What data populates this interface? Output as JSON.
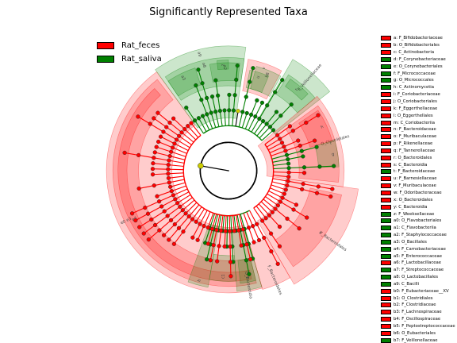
{
  "title": "Significantly Represented Taxa",
  "colors": {
    "Rat_feces": "#ff0000",
    "Rat_saliva": "#008000",
    "nonsig": "#cccc00"
  },
  "legend": [
    {
      "label": "Rat_feces",
      "color": "#ff0000"
    },
    {
      "label": "Rat_saliva",
      "color": "#008000"
    }
  ],
  "clades": [
    {
      "id": "e0",
      "group": "Rat_feces",
      "inner": 0.44,
      "outer": 0.95,
      "a0": 126,
      "a1": 286,
      "label": "e0"
    },
    {
      "id": "e3",
      "group": "Rat_feces",
      "inner": 0.7,
      "outer": 0.9,
      "a0": 128,
      "a1": 284,
      "label": "e3"
    },
    {
      "id": "e4",
      "group": "Rat_feces",
      "inner": 0.79,
      "outer": 0.86,
      "a0": 132,
      "a1": 282,
      "label": "e4"
    },
    {
      "id": "a9",
      "group": "Rat_saliva",
      "inner": 0.41,
      "outer": 0.97,
      "a0": 82,
      "a1": 126,
      "label": "a9"
    },
    {
      "id": "a8",
      "group": "Rat_saliva",
      "inner": 0.66,
      "outer": 0.88,
      "a0": 82,
      "a1": 124,
      "label": "a8"
    },
    {
      "id": "a3",
      "group": "Rat_saliva",
      "inner": 0.7,
      "outer": 0.84,
      "a0": 108,
      "a1": 124,
      "label": "a3"
    },
    {
      "id": "a2",
      "group": "Rat_saliva",
      "inner": 0.7,
      "outer": 0.84,
      "a0": 84,
      "a1": 100,
      "label": "a2"
    },
    {
      "id": "z",
      "group": "Rat_saliva",
      "inner": 0.79,
      "outer": 0.86,
      "a0": 90,
      "a1": 96,
      "label": "z"
    },
    {
      "id": "v",
      "group": "Rat_feces",
      "inner": 0.63,
      "outer": 0.88,
      "a0": 62,
      "a1": 80,
      "label": "v"
    },
    {
      "id": "b6",
      "group": "Rat_saliva",
      "inner": 0.66,
      "outer": 0.84,
      "a0": 61,
      "a1": 75,
      "label": "b6"
    },
    {
      "id": "u",
      "group": "Rat_saliva",
      "inner": 0.66,
      "outer": 0.8,
      "a0": 67,
      "a1": 78,
      "label": "u"
    },
    {
      "id": "F_Veillonellaceae",
      "group": "Rat_saliva",
      "inner": 0.46,
      "outer": 1.0,
      "a0": 38,
      "a1": 60,
      "label": "F_Veillonellaceae"
    },
    {
      "id": "j",
      "group": "Rat_saliva",
      "inner": 0.7,
      "outer": 0.88,
      "a0": 40,
      "a1": 58,
      "label": "j"
    },
    {
      "id": "t",
      "group": "Rat_saliva",
      "inner": 0.79,
      "outer": 0.86,
      "a0": 44,
      "a1": 56,
      "label": "t"
    },
    {
      "id": "O_Clostridiales",
      "group": "Rat_feces",
      "inner": 0.3,
      "outer": 0.9,
      "a0": -8,
      "a1": 40,
      "label": "O_Clostridiales"
    },
    {
      "id": "i",
      "group": "Rat_feces",
      "inner": 0.55,
      "outer": 0.86,
      "a0": -6,
      "a1": 36,
      "label": "i"
    },
    {
      "id": "h",
      "group": "Rat_feces",
      "inner": 0.66,
      "outer": 0.84,
      "a0": 16,
      "a1": 34,
      "label": "h"
    },
    {
      "id": "g",
      "group": "Rat_saliva",
      "inner": 0.7,
      "outer": 0.86,
      "a0": 2,
      "a1": 16,
      "label": "g"
    },
    {
      "id": "F_Bacteroidales",
      "group": "Rat_feces",
      "inner": 0.45,
      "outer": 1.02,
      "a0": -60,
      "a1": -8,
      "label": "F_Bacteroidales"
    },
    {
      "id": "k",
      "group": "Rat_feces",
      "inner": 0.65,
      "outer": 0.9,
      "a0": -56,
      "a1": -12,
      "label": "k"
    },
    {
      "id": "F_Bacteroidetes",
      "group": "Rat_feces",
      "inner": 0.6,
      "outer": 0.96,
      "a0": -74,
      "a1": -60,
      "label": "F_Bacteroidetes"
    },
    {
      "id": "O_Bacteroidia",
      "group": "Rat_saliva",
      "inner": 0.46,
      "outer": 0.94,
      "a0": -86,
      "a1": -74,
      "label": "O_Bacteroidia"
    },
    {
      "id": "f",
      "group": "Rat_saliva",
      "inner": 0.7,
      "outer": 0.88,
      "a0": -84,
      "a1": -76,
      "label": "f"
    },
    {
      "id": "c1",
      "group": "Rat_saliva",
      "inner": 0.66,
      "outer": 0.86,
      "a0": -100,
      "a1": -86,
      "label": "c1"
    },
    {
      "id": "b",
      "group": "Rat_saliva",
      "inner": 0.44,
      "outer": 0.92,
      "a0": -110,
      "a1": -100,
      "label": "b"
    }
  ],
  "keys": [
    {
      "id": "a",
      "label": "a: F_Bifidobacteriaceae",
      "group": "Rat_feces"
    },
    {
      "id": "b",
      "label": "b: O_Bifidobacteriales",
      "group": "Rat_feces"
    },
    {
      "id": "c",
      "label": "c: C_Actinobacteria",
      "group": "Rat_feces"
    },
    {
      "id": "d",
      "label": "d: F_Corynebacteriaceae",
      "group": "Rat_saliva"
    },
    {
      "id": "e",
      "label": "e: O_Corynebacteriales",
      "group": "Rat_saliva"
    },
    {
      "id": "f",
      "label": "f: F_Micrococcaceae",
      "group": "Rat_saliva"
    },
    {
      "id": "g",
      "label": "g: O_Micrococcales",
      "group": "Rat_saliva"
    },
    {
      "id": "h",
      "label": "h: C_Actinomycetia",
      "group": "Rat_saliva"
    },
    {
      "id": "i",
      "label": "i: F_Coriobacteriaceae",
      "group": "Rat_feces"
    },
    {
      "id": "j",
      "label": "j: O_Coriobacteriales",
      "group": "Rat_feces"
    },
    {
      "id": "k",
      "label": "k: F_Eggerthellaceae",
      "group": "Rat_feces"
    },
    {
      "id": "l",
      "label": "l: O_Eggerthellales",
      "group": "Rat_feces"
    },
    {
      "id": "m",
      "label": "m: C_Coriobacteriia",
      "group": "Rat_feces"
    },
    {
      "id": "n",
      "label": "n: F_Bacteroidaceae",
      "group": "Rat_feces"
    },
    {
      "id": "o",
      "label": "o: F_Muribaculaceae",
      "group": "Rat_feces"
    },
    {
      "id": "p",
      "label": "p: F_Rikenellaceae",
      "group": "Rat_feces"
    },
    {
      "id": "q",
      "label": "q: F_Tannerellaceae",
      "group": "Rat_feces"
    },
    {
      "id": "r",
      "label": "r: O_Bacteroidales",
      "group": "Rat_feces"
    },
    {
      "id": "s",
      "label": "s: C_Bacteroidia",
      "group": "Rat_feces"
    },
    {
      "id": "t",
      "label": "t: F_Bacteroidaceae",
      "group": "Rat_saliva"
    },
    {
      "id": "u",
      "label": "u: F_Barnesiellaceae",
      "group": "Rat_feces"
    },
    {
      "id": "v",
      "label": "v: F_Muribaculaceae",
      "group": "Rat_feces"
    },
    {
      "id": "w",
      "label": "w: F_Odoribacteraceae",
      "group": "Rat_feces"
    },
    {
      "id": "x",
      "label": "x: O_Bacteroidales",
      "group": "Rat_feces"
    },
    {
      "id": "y",
      "label": "y: C_Bacteroidia",
      "group": "Rat_feces"
    },
    {
      "id": "z",
      "label": "z: F_Weeksellaceae",
      "group": "Rat_saliva"
    },
    {
      "id": "a0",
      "label": "a0: O_Flavobacteriales",
      "group": "Rat_saliva"
    },
    {
      "id": "a1",
      "label": "a1: C_Flavobacteriia",
      "group": "Rat_saliva"
    },
    {
      "id": "a2",
      "label": "a2: F_Staphylococcaceae",
      "group": "Rat_saliva"
    },
    {
      "id": "a3",
      "label": "a3: O_Bacillales",
      "group": "Rat_saliva"
    },
    {
      "id": "a4",
      "label": "a4: F_Carnobacteriaceae",
      "group": "Rat_saliva"
    },
    {
      "id": "a5",
      "label": "a5: F_Enterococcaceae",
      "group": "Rat_saliva"
    },
    {
      "id": "a6",
      "label": "a6: F_Lactobacillaceae",
      "group": "Rat_feces"
    },
    {
      "id": "a7",
      "label": "a7: F_Streptococcaceae",
      "group": "Rat_saliva"
    },
    {
      "id": "a8",
      "label": "a8: O_Lactobacillales",
      "group": "Rat_saliva"
    },
    {
      "id": "a9",
      "label": "a9: C_Bacilli",
      "group": "Rat_saliva"
    },
    {
      "id": "b0",
      "label": "b0: F_Eubacteriaceae__XV",
      "group": "Rat_feces"
    },
    {
      "id": "b1",
      "label": "b1: O_Clostridiales",
      "group": "Rat_feces"
    },
    {
      "id": "b2",
      "label": "b2: F_Clostridiaceae",
      "group": "Rat_feces"
    },
    {
      "id": "b3",
      "label": "b3: F_Lachnospiraceae",
      "group": "Rat_feces"
    },
    {
      "id": "b4",
      "label": "b4: F_Oscillospiraceae",
      "group": "Rat_feces"
    },
    {
      "id": "b5",
      "label": "b5: F_Peptostreptococcaceae",
      "group": "Rat_feces"
    },
    {
      "id": "b6",
      "label": "b6: O_Eubacteriales",
      "group": "Rat_feces"
    },
    {
      "id": "b7",
      "label": "b7: F_Veillonellaceae",
      "group": "Rat_saliva"
    }
  ]
}
